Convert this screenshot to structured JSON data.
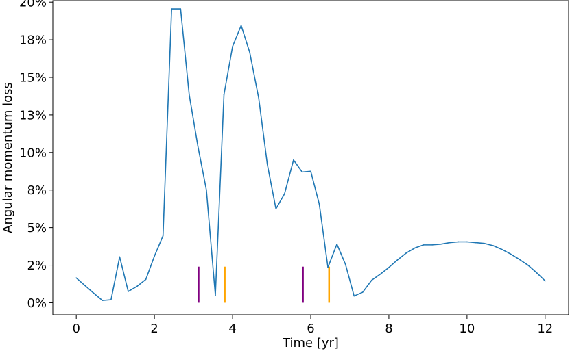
{
  "chart_data": {
    "type": "line",
    "title": "",
    "xlabel": "Time [yr]",
    "ylabel": "Angular momentum loss",
    "xlim": [
      -0.6,
      12.6
    ],
    "ylim": [
      -0.008,
      0.201
    ],
    "xticks": [
      0,
      2,
      4,
      6,
      8,
      10,
      12
    ],
    "xtick_labels": [
      "0",
      "2",
      "4",
      "6",
      "8",
      "10",
      "12"
    ],
    "yticks": [
      0,
      0.025,
      0.05,
      0.075,
      0.1,
      0.125,
      0.15,
      0.175,
      0.2
    ],
    "ytick_labels": [
      "0%",
      "2%",
      "5%",
      "8%",
      "10%",
      "13%",
      "15%",
      "18%",
      "20%"
    ],
    "grid": false,
    "series": [
      {
        "color": "#1f77b4",
        "x": [
          0,
          0.22,
          0.44,
          0.67,
          0.89,
          1.11,
          1.33,
          1.56,
          1.78,
          2.0,
          2.22,
          2.44,
          2.67,
          2.89,
          3.11,
          3.33,
          3.56,
          3.78,
          4.0,
          4.22,
          4.44,
          4.67,
          4.89,
          5.11,
          5.33,
          5.56,
          5.78,
          6.0,
          6.22,
          6.44,
          6.67,
          6.89,
          7.11,
          7.33,
          7.56,
          7.78,
          8.0,
          8.22,
          8.44,
          8.67,
          8.89,
          9.11,
          9.33,
          9.56,
          9.78,
          10.0,
          10.22,
          10.44,
          10.67,
          10.89,
          11.11,
          11.33,
          11.56,
          11.78,
          12.0
        ],
        "y": [
          0.0165,
          0.0115,
          0.0065,
          0.0015,
          0.002,
          0.0305,
          0.0075,
          0.011,
          0.0155,
          0.031,
          0.0445,
          0.1955,
          0.1955,
          0.1385,
          0.1045,
          0.075,
          0.005,
          0.1385,
          0.1705,
          0.1845,
          0.1665,
          0.136,
          0.092,
          0.0625,
          0.0725,
          0.095,
          0.087,
          0.0875,
          0.0655,
          0.0235,
          0.039,
          0.0255,
          0.0045,
          0.007,
          0.015,
          0.019,
          0.0235,
          0.0285,
          0.033,
          0.0365,
          0.0385,
          0.0385,
          0.039,
          0.04,
          0.0405,
          0.0405,
          0.04,
          0.0395,
          0.038,
          0.0355,
          0.0325,
          0.029,
          0.025,
          0.02,
          0.0145
        ]
      }
    ],
    "vlines": [
      {
        "x": 3.13,
        "ymin": 0,
        "ymax": 0.024,
        "color": "#800080"
      },
      {
        "x": 3.8,
        "ymin": 0,
        "ymax": 0.024,
        "color": "#ffa500"
      },
      {
        "x": 5.8,
        "ymin": 0,
        "ymax": 0.024,
        "color": "#800080"
      },
      {
        "x": 6.47,
        "ymin": 0,
        "ymax": 0.024,
        "color": "#ffa500"
      }
    ]
  }
}
